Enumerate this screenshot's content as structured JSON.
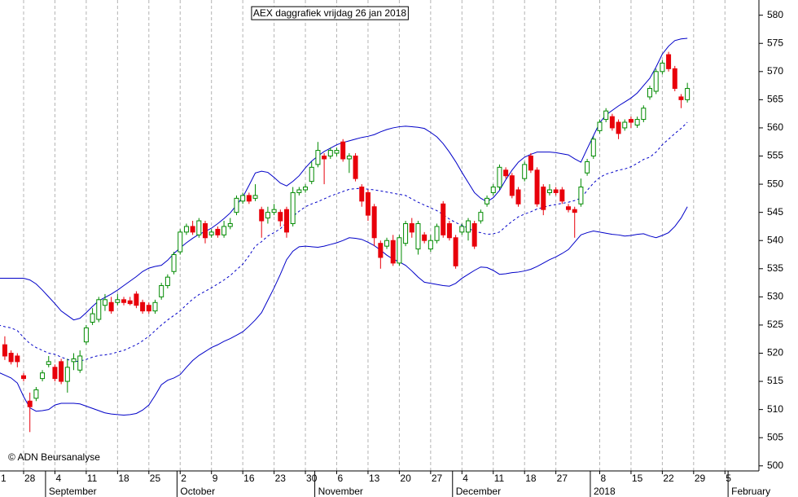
{
  "chart_data": {
    "type": "candlestick",
    "title": "AEX daggrafiek vrijdag 26 jan 2018",
    "credit": "© ADN Beursanalyse",
    "categories": [
      "1",
      null,
      null,
      null,
      null,
      "28",
      null,
      null,
      null,
      null,
      "4",
      null,
      null,
      null,
      null,
      "11",
      null,
      null,
      null,
      null,
      "18",
      null,
      null,
      null,
      null,
      "25",
      null,
      null,
      null,
      null,
      "2",
      null,
      null,
      null,
      null,
      "9",
      null,
      null,
      null,
      null,
      "16",
      null,
      null,
      null,
      null,
      "23",
      null,
      null,
      null,
      null,
      "30",
      null,
      null,
      null,
      null,
      "6",
      null,
      null,
      null,
      null,
      "13",
      null,
      null,
      null,
      null,
      "20",
      null,
      null,
      null,
      null,
      "27",
      null,
      null,
      null,
      null,
      "4",
      null,
      null,
      null,
      null,
      "11",
      null,
      null,
      null,
      null,
      "18",
      null,
      null,
      null,
      null,
      "27",
      null,
      null,
      null,
      null,
      null,
      null,
      "8",
      null,
      null,
      null,
      null,
      "15",
      null,
      null,
      null,
      null,
      "22",
      null,
      null,
      null,
      null,
      "29",
      null,
      null,
      null,
      null,
      "5",
      null,
      null,
      null
    ],
    "month_labels": [
      null,
      null,
      null,
      null,
      null,
      null,
      null,
      null,
      null,
      "September",
      null,
      null,
      null,
      null,
      null,
      null,
      null,
      null,
      null,
      null,
      null,
      null,
      null,
      null,
      null,
      null,
      null,
      null,
      null,
      null,
      "October",
      null,
      null,
      null,
      null,
      null,
      null,
      null,
      null,
      null,
      null,
      null,
      null,
      null,
      null,
      null,
      null,
      null,
      null,
      null,
      null,
      null,
      "November",
      null,
      null,
      null,
      null,
      null,
      null,
      null,
      null,
      null,
      null,
      null,
      null,
      null,
      null,
      null,
      null,
      null,
      null,
      null,
      null,
      null,
      "December",
      null,
      null,
      null,
      null,
      null,
      null,
      null,
      null,
      null,
      null,
      null,
      null,
      null,
      null,
      null,
      null,
      null,
      null,
      null,
      null,
      null,
      "2018",
      null,
      null,
      null,
      null,
      null,
      null,
      null,
      null,
      null,
      null,
      null,
      null,
      null,
      null,
      null,
      null,
      null,
      null,
      null,
      null,
      null,
      "February",
      null,
      null,
      null,
      null,
      null
    ],
    "open": [
      null,
      null,
      521.5,
      520,
      519.5,
      516,
      511.5,
      512,
      515.5,
      518,
      517.5,
      518.5,
      515,
      518.5,
      517,
      522,
      525.5,
      526,
      528.5,
      529,
      529,
      529.5,
      529.3,
      530.5,
      529,
      528.5,
      527.5,
      530,
      532,
      534.5,
      538,
      541.5,
      542.5,
      541,
      543,
      541,
      542,
      541,
      542.5,
      545,
      547,
      548,
      547.5,
      545.5,
      544,
      545,
      545,
      545.5,
      543,
      548.5,
      549,
      550.5,
      553.5,
      555,
      555,
      555.5,
      557.5,
      554.5,
      555,
      549.5,
      548.5,
      546,
      539.5,
      539,
      540,
      536,
      539.5,
      543,
      538.5,
      541,
      538.5,
      540,
      546.5,
      543,
      540.5,
      541.5,
      541.5,
      543,
      543.5,
      546.5,
      548.5,
      549.5,
      552.5,
      551.5,
      549,
      551,
      555,
      552.5,
      549.5,
      548.5,
      549,
      549,
      546,
      545.5,
      546.5,
      552,
      555,
      559.5,
      561.5,
      562,
      561,
      560,
      561.5,
      560.5,
      561.5,
      565.5,
      566.5,
      570,
      573,
      570.5,
      565.5,
      565,
      null,
      null,
      null,
      null,
      null,
      null,
      null,
      null,
      null
    ],
    "high": [
      null,
      null,
      523,
      520.5,
      520,
      516.5,
      513,
      514,
      517,
      519.5,
      518,
      519,
      519,
      520,
      520.5,
      525,
      528,
      530,
      530.5,
      530,
      530.5,
      530,
      530,
      531,
      529.5,
      529,
      529.5,
      532.5,
      534,
      538,
      542,
      543,
      543.5,
      544,
      543.5,
      542,
      542.5,
      543.5,
      544,
      548,
      548.5,
      548.5,
      550,
      546,
      546,
      546.5,
      545.5,
      546,
      549.5,
      549.5,
      550,
      554,
      557.5,
      555.5,
      556.5,
      556.5,
      558,
      555.5,
      555.5,
      550,
      549,
      546.5,
      540,
      540.5,
      541,
      541,
      543.5,
      544,
      543.5,
      541.5,
      541,
      543,
      547,
      543.5,
      541,
      543,
      544,
      543.5,
      545.5,
      548,
      550,
      553.5,
      553,
      552,
      549.5,
      554,
      555.5,
      553,
      550,
      550,
      549.5,
      549.5,
      546.5,
      546,
      551,
      554.5,
      558.5,
      561.5,
      563.5,
      562.5,
      561.5,
      561.5,
      562,
      562,
      564,
      567.5,
      570.5,
      572,
      573.5,
      571,
      566,
      568,
      null,
      null,
      null,
      null,
      null,
      null,
      null,
      null,
      null
    ],
    "low": [
      null,
      null,
      518.8,
      518,
      517.5,
      515,
      506,
      511.5,
      515,
      517.5,
      515,
      514.5,
      513,
      517,
      516.5,
      521.5,
      525,
      525.5,
      527.5,
      527,
      528.5,
      528.5,
      528.5,
      528,
      527,
      527,
      527,
      529.5,
      531.5,
      534,
      537.5,
      541,
      541,
      540.5,
      539.5,
      540.5,
      540.5,
      540.5,
      542,
      544.5,
      546.5,
      546.5,
      547,
      540.5,
      543,
      544.5,
      542.5,
      540.5,
      542.5,
      548,
      548.5,
      550,
      553,
      550,
      554.5,
      555,
      554,
      552,
      550.5,
      546,
      543.5,
      539,
      535,
      538.5,
      535.5,
      535.5,
      539,
      540.5,
      537.5,
      539.5,
      538,
      539.5,
      540.5,
      540,
      535,
      541,
      540,
      538.5,
      543,
      546,
      548,
      549,
      551,
      547.5,
      546,
      550.5,
      552,
      546,
      544.5,
      548,
      548,
      546.5,
      545,
      540.5,
      546,
      551.5,
      554.5,
      559,
      561,
      559.5,
      558,
      559.5,
      560,
      560,
      561,
      565,
      566,
      569.5,
      570,
      566.5,
      563.5,
      564.5,
      null,
      null,
      null,
      null,
      null,
      null,
      null,
      null,
      null
    ],
    "close": [
      null,
      null,
      519.5,
      518.5,
      518.5,
      515.5,
      510.5,
      513.5,
      516.5,
      518.5,
      515.5,
      515,
      517.5,
      519,
      519.5,
      524.5,
      527,
      529.5,
      529.5,
      527.5,
      529.5,
      529,
      528.8,
      528.5,
      527.5,
      527.5,
      529,
      532,
      533.5,
      537.5,
      541.5,
      542.5,
      541.5,
      543.5,
      540.5,
      541.5,
      541,
      542.5,
      543,
      547.5,
      548,
      547,
      548,
      543.5,
      545,
      545.5,
      543.5,
      541.5,
      548.5,
      549,
      549.5,
      553,
      556,
      554.5,
      556,
      556,
      554.5,
      555,
      551,
      547,
      544.5,
      540.5,
      537,
      540,
      536,
      540.5,
      543,
      541.5,
      543,
      540,
      540,
      542.5,
      541,
      540.5,
      535.5,
      542.5,
      543.5,
      539,
      545,
      547.5,
      549.5,
      553,
      551.5,
      548,
      546.5,
      553.5,
      552.5,
      546.5,
      545.5,
      549,
      548.5,
      547,
      545.5,
      545,
      549.5,
      554,
      558,
      561,
      563,
      560,
      559,
      561,
      561,
      561.5,
      563.5,
      567,
      570,
      571.5,
      570.5,
      567,
      565,
      567,
      null,
      null,
      null,
      null,
      null,
      null,
      null,
      null,
      null
    ],
    "bands": {
      "upper": [
        null,
        533.3,
        533.3,
        533.3,
        533.3,
        533.3,
        533.0,
        532.3,
        531.2,
        530.0,
        528.8,
        527.5,
        526.7,
        525.9,
        526.2,
        527.2,
        528.3,
        529.3,
        529.9,
        530.5,
        531.2,
        532.0,
        532.8,
        533.6,
        534.5,
        535.1,
        535.4,
        535.6,
        536.5,
        537.7,
        538.7,
        539.6,
        540.4,
        541.1,
        541.6,
        542.2,
        543.0,
        543.9,
        544.9,
        546.3,
        547.7,
        549.8,
        552.0,
        552.3,
        552.1,
        551.2,
        550.2,
        549.7,
        550.5,
        551.5,
        552.9,
        554.1,
        555.0,
        555.8,
        556.4,
        557.0,
        557.4,
        557.7,
        558.0,
        558.3,
        558.5,
        558.8,
        559.3,
        559.7,
        560.0,
        560.2,
        560.3,
        560.2,
        560.1,
        559.9,
        559.2,
        558.4,
        557.2,
        555.7,
        554.0,
        552.1,
        550.3,
        548.5,
        547.5,
        546.9,
        547.6,
        548.9,
        550.8,
        552.5,
        553.9,
        554.8,
        555.3,
        555.7,
        555.7,
        555.7,
        555.6,
        555.4,
        555.2,
        554.5,
        553.9,
        556.3,
        558.6,
        560.9,
        562.3,
        563.1,
        563.9,
        564.6,
        565.3,
        566.2,
        567.5,
        568.8,
        570.8,
        573.1,
        574.5,
        575.5,
        575.8,
        575.9,
        null,
        null,
        null,
        null,
        null,
        null,
        null,
        null,
        null
      ],
      "middle": [
        null,
        525.0,
        524.7,
        524.5,
        524.0,
        522.8,
        521.7,
        521.0,
        520.5,
        520.0,
        519.8,
        519.3,
        518.9,
        518.5,
        518.6,
        518.9,
        519.3,
        519.6,
        519.7,
        519.9,
        520.2,
        520.5,
        521.0,
        521.5,
        522.2,
        523.0,
        524.0,
        525.0,
        525.9,
        526.7,
        527.5,
        528.6,
        529.6,
        530.4,
        531.0,
        531.6,
        532.3,
        533.0,
        533.8,
        534.8,
        535.8,
        537.3,
        539.0,
        539.8,
        540.8,
        541.4,
        542.1,
        543.2,
        544.3,
        545.2,
        546.0,
        546.5,
        546.9,
        547.4,
        547.9,
        548.3,
        548.7,
        549.1,
        549.2,
        549.3,
        549.1,
        549.0,
        548.8,
        548.6,
        548.4,
        548.2,
        548.0,
        547.4,
        546.8,
        546.3,
        545.8,
        545.3,
        544.6,
        543.8,
        543.2,
        542.7,
        542.2,
        541.6,
        541.4,
        541.1,
        541.2,
        541.5,
        542.5,
        543.4,
        544.2,
        544.7,
        545.1,
        545.6,
        545.9,
        546.2,
        546.4,
        546.6,
        546.8,
        547.1,
        547.5,
        548.9,
        550.2,
        551.2,
        551.8,
        552.1,
        552.5,
        552.7,
        553.1,
        553.7,
        554.4,
        554.8,
        555.7,
        557.0,
        558.0,
        559.0,
        559.9,
        561.0,
        null,
        null,
        null,
        null,
        null,
        null,
        null,
        null,
        null
      ],
      "lower": [
        null,
        516.6,
        516.1,
        515.6,
        514.7,
        512.3,
        510.3,
        509.7,
        509.8,
        510.0,
        510.8,
        511.1,
        511.1,
        511.1,
        511.0,
        510.6,
        510.2,
        509.8,
        509.4,
        509.2,
        509.1,
        509.0,
        509.1,
        509.3,
        509.9,
        510.8,
        512.5,
        514.4,
        515.2,
        515.6,
        516.2,
        517.5,
        518.7,
        519.6,
        520.3,
        521.0,
        521.5,
        522.1,
        522.6,
        523.2,
        523.8,
        524.8,
        525.9,
        527.2,
        529.4,
        531.6,
        534.0,
        536.6,
        538.1,
        538.9,
        539.0,
        538.9,
        538.8,
        539.0,
        539.3,
        539.6,
        540.0,
        540.5,
        540.4,
        540.2,
        539.7,
        539.1,
        538.3,
        537.4,
        536.7,
        536.2,
        535.6,
        534.6,
        533.5,
        532.6,
        532.4,
        532.2,
        532.0,
        531.9,
        532.4,
        533.3,
        534.0,
        534.7,
        535.3,
        535.2,
        534.7,
        534.0,
        534.1,
        534.3,
        534.4,
        534.6,
        534.9,
        535.4,
        536.0,
        536.6,
        537.1,
        537.7,
        538.4,
        539.7,
        541.0,
        541.4,
        541.7,
        541.5,
        541.3,
        541.1,
        541.0,
        540.8,
        540.9,
        541.1,
        541.2,
        540.8,
        540.5,
        540.9,
        541.4,
        542.5,
        544.0,
        546.0,
        null,
        null,
        null,
        null,
        null,
        null,
        null,
        null,
        null
      ]
    },
    "up_color": "#008a00",
    "down_color": "#e8000b",
    "band_color": "#0000c8",
    "ylim": [
      499.1,
      582.7
    ],
    "yticks": [
      500,
      505,
      510,
      515,
      520,
      525,
      530,
      535,
      540,
      545,
      550,
      555,
      560,
      565,
      570,
      575,
      580
    ],
    "x_grid": true
  }
}
